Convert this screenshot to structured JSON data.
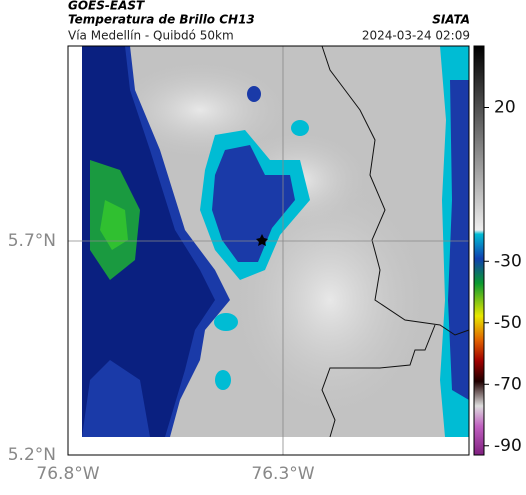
{
  "header": {
    "source": "GOES-EAST",
    "product": "Temperatura de Brillo CH13",
    "region": "Vía Medellín - Quibdó 50km",
    "brand": "SIATA",
    "timestamp": "2024-03-24 02:09"
  },
  "map": {
    "lat_labels": [
      "5.7°N",
      "5.2°N"
    ],
    "lon_labels": [
      "76.8°W",
      "76.3°W"
    ]
  },
  "colorbar": {
    "lim": [
      -93,
      40
    ],
    "ticks": [
      20,
      -30,
      -50,
      -70,
      -90
    ]
  }
}
